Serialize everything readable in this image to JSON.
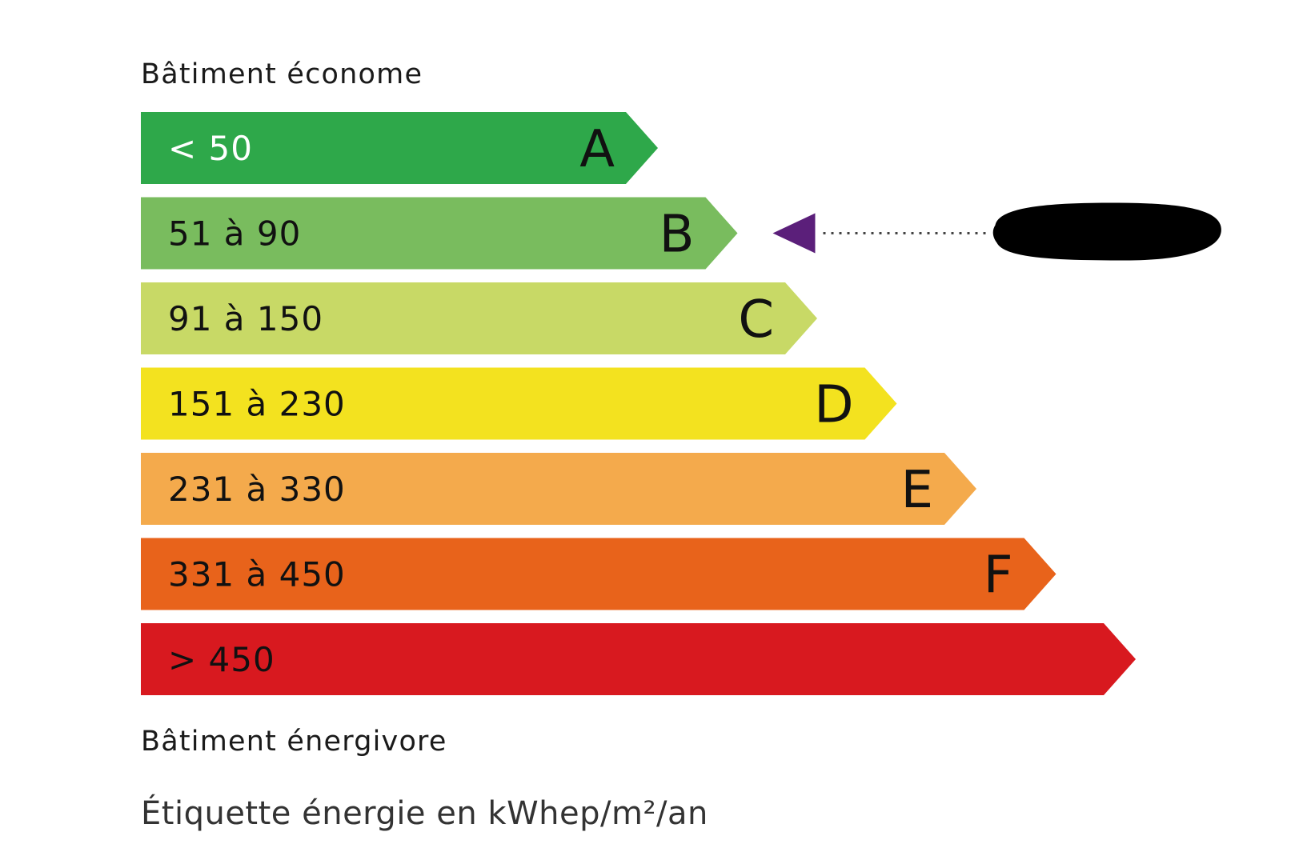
{
  "labels": {
    "top": "Bâtiment économe",
    "bottom": "Bâtiment énergivore",
    "unit": "Étiquette énergie en kWhep/m²/an"
  },
  "classes": [
    {
      "letter": "A",
      "range": "< 50",
      "color": "#2ea84a",
      "text_color": "#ffffff"
    },
    {
      "letter": "B",
      "range": "51 à 90",
      "color": "#79bc5e",
      "text_color": "#111111"
    },
    {
      "letter": "C",
      "range": "91 à 150",
      "color": "#c8d966",
      "text_color": "#111111"
    },
    {
      "letter": "D",
      "range": "151 à 230",
      "color": "#f3e21f",
      "text_color": "#111111"
    },
    {
      "letter": "E",
      "range": "231 à 330",
      "color": "#f4aa4c",
      "text_color": "#111111"
    },
    {
      "letter": "F",
      "range": "331 à 450",
      "color": "#e8631b",
      "text_color": "#111111"
    },
    {
      "letter": "",
      "range": "> 450",
      "color": "#d8191f",
      "text_color": "#111111"
    }
  ],
  "indicator": {
    "class": "B",
    "arrow_color": "#5b1f7a",
    "redacted_color": "#000000"
  }
}
